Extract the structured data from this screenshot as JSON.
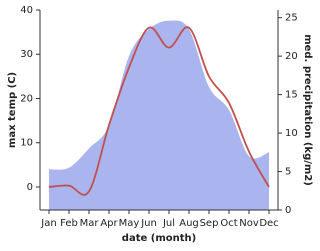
{
  "chart_data": {
    "type": "line-area",
    "xlabel": "date (month)",
    "ylabel": "max temp (C)",
    "y2label": "med. precipitation (kg/m2)",
    "categories": [
      "Jan",
      "Feb",
      "Mar",
      "Apr",
      "May",
      "Jun",
      "Jul",
      "Aug",
      "Sep",
      "Oct",
      "Nov",
      "Dec"
    ],
    "series": [
      {
        "kind": "area",
        "axis": "y2",
        "color": "#aab4ee",
        "values": [
          5.3,
          5.5,
          8,
          11,
          20,
          23.5,
          24.6,
          23.5,
          16,
          13,
          7,
          7.5
        ]
      },
      {
        "kind": "line",
        "axis": "y",
        "color": "#c0504d",
        "values": [
          0,
          0.3,
          -1,
          14,
          27,
          36,
          31.5,
          36,
          25,
          19,
          8,
          0
        ]
      }
    ],
    "ylim": [
      -5.2,
      40
    ],
    "yticks": [
      0,
      10,
      20,
      30,
      40
    ],
    "y2lim": [
      0,
      26
    ],
    "y2ticks": [
      0,
      5,
      10,
      15,
      20,
      25
    ]
  }
}
